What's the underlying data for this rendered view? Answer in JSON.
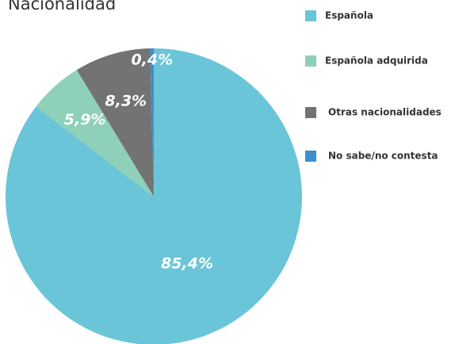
{
  "chart_data": {
    "type": "pie",
    "title": "Nacionalidad",
    "categories": [
      "Española",
      "Española adquirida",
      "Otras nacionalidades",
      "No sabe/no contesta"
    ],
    "values": [
      85.4,
      5.9,
      8.3,
      0.4
    ],
    "value_labels": [
      "85,4%",
      "5,9%",
      "8,3%",
      "0,4%"
    ],
    "colors": [
      "#6ac5d8",
      "#8fd0b9",
      "#737373",
      "#3b8fd1"
    ],
    "legend": "right"
  }
}
